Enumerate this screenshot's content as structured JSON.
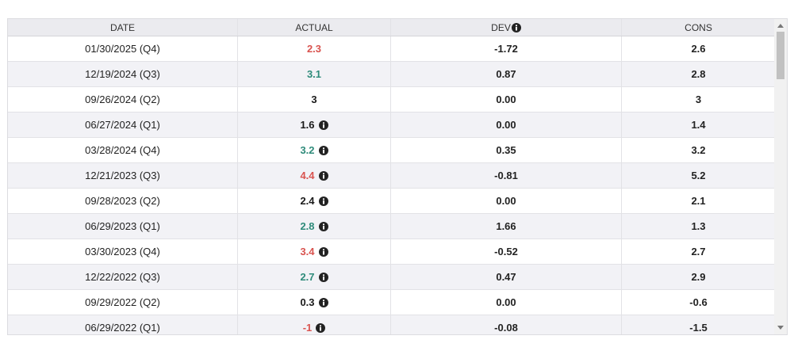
{
  "table": {
    "columns": [
      "DATE",
      "ACTUAL",
      "DEV",
      "CONS"
    ],
    "rows": [
      {
        "date": "01/30/2025 (Q4)",
        "actual": "2.3",
        "actual_color": "#d9534f",
        "note": false,
        "dev": "-1.72",
        "cons": "2.6"
      },
      {
        "date": "12/19/2024 (Q3)",
        "actual": "3.1",
        "actual_color": "#2e8b7a",
        "note": false,
        "dev": "0.87",
        "cons": "2.8"
      },
      {
        "date": "09/26/2024 (Q2)",
        "actual": "3",
        "actual_color": "#1a1a1a",
        "note": false,
        "dev": "0.00",
        "cons": "3"
      },
      {
        "date": "06/27/2024 (Q1)",
        "actual": "1.6",
        "actual_color": "#1a1a1a",
        "note": true,
        "dev": "0.00",
        "cons": "1.4"
      },
      {
        "date": "03/28/2024 (Q4)",
        "actual": "3.2",
        "actual_color": "#2e8b7a",
        "note": true,
        "dev": "0.35",
        "cons": "3.2"
      },
      {
        "date": "12/21/2023 (Q3)",
        "actual": "4.4",
        "actual_color": "#d9534f",
        "note": true,
        "dev": "-0.81",
        "cons": "5.2"
      },
      {
        "date": "09/28/2023 (Q2)",
        "actual": "2.4",
        "actual_color": "#1a1a1a",
        "note": true,
        "dev": "0.00",
        "cons": "2.1"
      },
      {
        "date": "06/29/2023 (Q1)",
        "actual": "2.8",
        "actual_color": "#2e8b7a",
        "note": true,
        "dev": "1.66",
        "cons": "1.3"
      },
      {
        "date": "03/30/2023 (Q4)",
        "actual": "3.4",
        "actual_color": "#d9534f",
        "note": true,
        "dev": "-0.52",
        "cons": "2.7"
      },
      {
        "date": "12/22/2022 (Q3)",
        "actual": "2.7",
        "actual_color": "#2e8b7a",
        "note": true,
        "dev": "0.47",
        "cons": "2.9"
      },
      {
        "date": "09/29/2022 (Q2)",
        "actual": "0.3",
        "actual_color": "#1a1a1a",
        "note": true,
        "dev": "0.00",
        "cons": "-0.6"
      },
      {
        "date": "06/29/2022 (Q1)",
        "actual": "-1",
        "actual_color": "#d9534f",
        "note": true,
        "dev": "-0.08",
        "cons": "-1.5"
      }
    ]
  }
}
